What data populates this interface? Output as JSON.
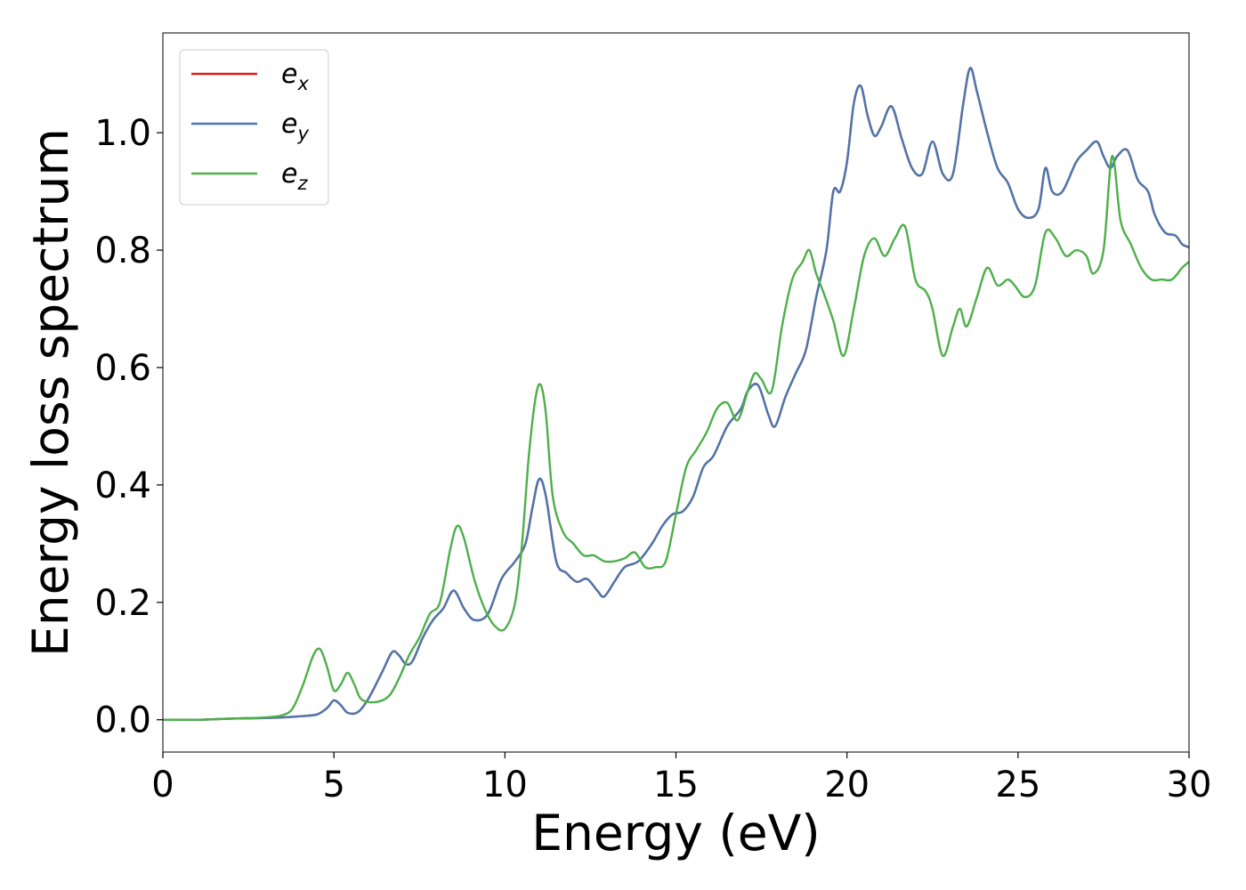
{
  "chart_data": {
    "type": "line",
    "xlabel": "Energy (eV)",
    "ylabel": "Energy loss spectrum",
    "xlim": [
      0,
      30
    ],
    "ylim": [
      -0.055,
      1.17
    ],
    "xticks": [
      "0",
      "5",
      "10",
      "15",
      "20",
      "25",
      "30"
    ],
    "yticks": [
      "0.0",
      "0.2",
      "0.4",
      "0.6",
      "0.8",
      "1.0"
    ],
    "grid": false,
    "legend_position": "top-left",
    "series": [
      {
        "name": "e",
        "subscript": "x",
        "color": "#e41a1c",
        "x": [
          0,
          1,
          2,
          3,
          3.5,
          4,
          4.5,
          4.8,
          5.0,
          5.2,
          5.4,
          5.7,
          6.0,
          6.4,
          6.7,
          6.9,
          7.1,
          7.3,
          7.6,
          7.9,
          8.2,
          8.5,
          8.8,
          9.1,
          9.5,
          9.9,
          10.3,
          10.6,
          10.8,
          11.0,
          11.2,
          11.5,
          11.8,
          12.1,
          12.4,
          12.7,
          12.9,
          13.2,
          13.5,
          13.9,
          14.3,
          14.6,
          14.9,
          15.2,
          15.5,
          15.8,
          16.1,
          16.5,
          16.9,
          17.1,
          17.4,
          17.7,
          17.9,
          18.2,
          18.5,
          18.8,
          19.1,
          19.4,
          19.6,
          19.8,
          20.0,
          20.2,
          20.4,
          20.6,
          20.8,
          21.0,
          21.3,
          21.6,
          21.9,
          22.2,
          22.5,
          22.8,
          23.1,
          23.4,
          23.6,
          23.8,
          24.1,
          24.4,
          24.7,
          25.0,
          25.3,
          25.6,
          25.8,
          26.0,
          26.3,
          26.7,
          27.0,
          27.3,
          27.5,
          27.7,
          27.9,
          28.2,
          28.5,
          28.8,
          29.0,
          29.3,
          29.6,
          29.8,
          30.0
        ],
        "y": [
          0.0,
          0.0,
          0.002,
          0.003,
          0.004,
          0.006,
          0.009,
          0.02,
          0.033,
          0.025,
          0.012,
          0.013,
          0.035,
          0.08,
          0.115,
          0.11,
          0.095,
          0.1,
          0.14,
          0.17,
          0.19,
          0.22,
          0.19,
          0.17,
          0.18,
          0.24,
          0.27,
          0.3,
          0.36,
          0.41,
          0.38,
          0.27,
          0.25,
          0.235,
          0.24,
          0.22,
          0.21,
          0.235,
          0.26,
          0.27,
          0.3,
          0.33,
          0.35,
          0.355,
          0.38,
          0.43,
          0.45,
          0.5,
          0.53,
          0.56,
          0.57,
          0.52,
          0.5,
          0.55,
          0.59,
          0.63,
          0.72,
          0.8,
          0.9,
          0.9,
          0.95,
          1.05,
          1.08,
          1.03,
          0.995,
          1.01,
          1.045,
          0.99,
          0.94,
          0.93,
          0.985,
          0.93,
          0.93,
          1.05,
          1.11,
          1.07,
          1.0,
          0.94,
          0.915,
          0.87,
          0.855,
          0.87,
          0.94,
          0.9,
          0.9,
          0.95,
          0.97,
          0.985,
          0.96,
          0.94,
          0.96,
          0.97,
          0.92,
          0.9,
          0.86,
          0.83,
          0.825,
          0.81,
          0.805
        ]
      },
      {
        "name": "e",
        "subscript": "y",
        "color": "#4a77ad",
        "x": [
          0,
          1,
          2,
          3,
          3.5,
          4,
          4.5,
          4.8,
          5.0,
          5.2,
          5.4,
          5.7,
          6.0,
          6.4,
          6.7,
          6.9,
          7.1,
          7.3,
          7.6,
          7.9,
          8.2,
          8.5,
          8.8,
          9.1,
          9.5,
          9.9,
          10.3,
          10.6,
          10.8,
          11.0,
          11.2,
          11.5,
          11.8,
          12.1,
          12.4,
          12.7,
          12.9,
          13.2,
          13.5,
          13.9,
          14.3,
          14.6,
          14.9,
          15.2,
          15.5,
          15.8,
          16.1,
          16.5,
          16.9,
          17.1,
          17.4,
          17.7,
          17.9,
          18.2,
          18.5,
          18.8,
          19.1,
          19.4,
          19.6,
          19.8,
          20.0,
          20.2,
          20.4,
          20.6,
          20.8,
          21.0,
          21.3,
          21.6,
          21.9,
          22.2,
          22.5,
          22.8,
          23.1,
          23.4,
          23.6,
          23.8,
          24.1,
          24.4,
          24.7,
          25.0,
          25.3,
          25.6,
          25.8,
          26.0,
          26.3,
          26.7,
          27.0,
          27.3,
          27.5,
          27.7,
          27.9,
          28.2,
          28.5,
          28.8,
          29.0,
          29.3,
          29.6,
          29.8,
          30.0
        ],
        "y": [
          0.0,
          0.0,
          0.002,
          0.003,
          0.004,
          0.006,
          0.009,
          0.02,
          0.033,
          0.025,
          0.012,
          0.013,
          0.035,
          0.08,
          0.115,
          0.11,
          0.095,
          0.1,
          0.14,
          0.17,
          0.19,
          0.22,
          0.19,
          0.17,
          0.18,
          0.24,
          0.27,
          0.3,
          0.36,
          0.41,
          0.38,
          0.27,
          0.25,
          0.235,
          0.24,
          0.22,
          0.21,
          0.235,
          0.26,
          0.27,
          0.3,
          0.33,
          0.35,
          0.355,
          0.38,
          0.43,
          0.45,
          0.5,
          0.53,
          0.56,
          0.57,
          0.52,
          0.5,
          0.55,
          0.59,
          0.63,
          0.72,
          0.8,
          0.9,
          0.9,
          0.95,
          1.05,
          1.08,
          1.03,
          0.995,
          1.01,
          1.045,
          0.99,
          0.94,
          0.93,
          0.985,
          0.93,
          0.93,
          1.05,
          1.11,
          1.07,
          1.0,
          0.94,
          0.915,
          0.87,
          0.855,
          0.87,
          0.94,
          0.9,
          0.9,
          0.95,
          0.97,
          0.985,
          0.96,
          0.94,
          0.96,
          0.97,
          0.92,
          0.9,
          0.86,
          0.83,
          0.825,
          0.81,
          0.805
        ]
      },
      {
        "name": "e",
        "subscript": "z",
        "color": "#4daf4a",
        "x": [
          0,
          1,
          2,
          3,
          3.5,
          3.8,
          4.1,
          4.4,
          4.6,
          4.8,
          5.0,
          5.2,
          5.4,
          5.6,
          5.8,
          6.2,
          6.6,
          6.9,
          7.2,
          7.5,
          7.8,
          8.1,
          8.4,
          8.6,
          8.8,
          9.1,
          9.4,
          9.7,
          10.0,
          10.3,
          10.5,
          10.7,
          10.9,
          11.05,
          11.2,
          11.4,
          11.7,
          12.0,
          12.3,
          12.6,
          12.9,
          13.2,
          13.5,
          13.8,
          14.1,
          14.4,
          14.7,
          15.0,
          15.3,
          15.6,
          15.9,
          16.2,
          16.5,
          16.8,
          17.1,
          17.3,
          17.5,
          17.8,
          18.1,
          18.4,
          18.7,
          18.9,
          19.1,
          19.3,
          19.6,
          19.9,
          20.2,
          20.5,
          20.8,
          21.1,
          21.4,
          21.7,
          22.0,
          22.3,
          22.5,
          22.8,
          23.1,
          23.3,
          23.5,
          23.8,
          24.1,
          24.4,
          24.7,
          24.9,
          25.2,
          25.5,
          25.8,
          26.1,
          26.4,
          26.7,
          27.0,
          27.2,
          27.5,
          27.75,
          28.0,
          28.3,
          28.6,
          28.9,
          29.2,
          29.5,
          29.8,
          30.0
        ],
        "y": [
          0.0,
          0.0,
          0.002,
          0.004,
          0.008,
          0.02,
          0.06,
          0.11,
          0.12,
          0.09,
          0.05,
          0.06,
          0.08,
          0.06,
          0.035,
          0.03,
          0.04,
          0.07,
          0.11,
          0.14,
          0.18,
          0.2,
          0.29,
          0.33,
          0.31,
          0.24,
          0.19,
          0.16,
          0.155,
          0.2,
          0.3,
          0.45,
          0.55,
          0.57,
          0.52,
          0.38,
          0.32,
          0.3,
          0.28,
          0.28,
          0.27,
          0.27,
          0.275,
          0.285,
          0.26,
          0.26,
          0.27,
          0.35,
          0.43,
          0.46,
          0.49,
          0.53,
          0.54,
          0.51,
          0.56,
          0.59,
          0.58,
          0.56,
          0.67,
          0.75,
          0.78,
          0.8,
          0.76,
          0.73,
          0.68,
          0.62,
          0.7,
          0.79,
          0.82,
          0.79,
          0.82,
          0.84,
          0.75,
          0.73,
          0.7,
          0.62,
          0.67,
          0.7,
          0.67,
          0.72,
          0.77,
          0.74,
          0.75,
          0.74,
          0.72,
          0.74,
          0.83,
          0.82,
          0.79,
          0.8,
          0.79,
          0.76,
          0.8,
          0.96,
          0.85,
          0.81,
          0.77,
          0.75,
          0.75,
          0.75,
          0.77,
          0.78
        ]
      }
    ]
  }
}
